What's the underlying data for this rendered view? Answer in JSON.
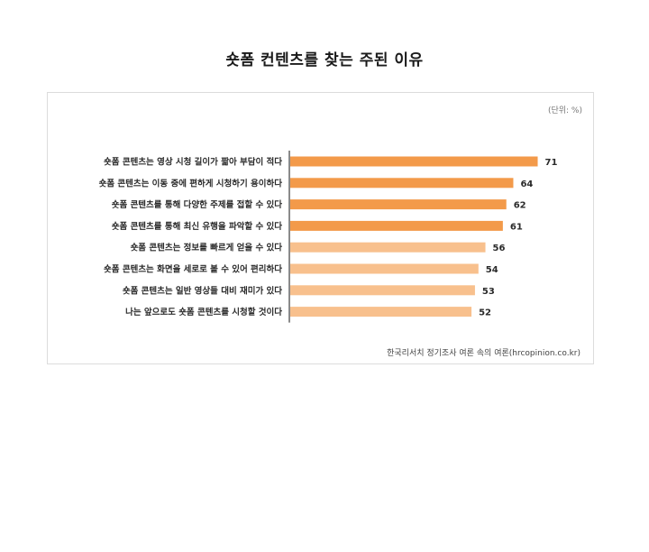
{
  "chart_data": {
    "type": "bar",
    "orientation": "horizontal",
    "title": "숏폼 컨텐츠를 찾는 주된 이유",
    "unit": "(단위: %)",
    "source": "한국리서치 정기조사 여론 속의 여론(hrcopinion.co.kr)",
    "categories": [
      "숏폼 콘텐츠는 영상 시청 길이가 짧아 부담이 적다",
      "숏폼 콘텐츠는 이동 중에 편하게 시청하기 용이하다",
      "숏폼 콘텐츠를 통해 다양한 주제를 접할 수 있다",
      "숏폼 콘텐츠를 통해 최신 유행을 파악할 수 있다",
      "숏폼 콘텐츠는 정보를 빠르게 얻을 수 있다",
      "숏폼 콘텐츠는 화면을 세로로 볼 수 있어 편리하다",
      "숏폼 콘텐츠는 일반 영상들 대비 재미가 있다",
      "나는 앞으로도 숏폼 콘텐츠를 시청할 것이다"
    ],
    "values": [
      71,
      64,
      62,
      61,
      56,
      54,
      53,
      52
    ],
    "xlim": [
      0,
      75
    ],
    "grid": false,
    "colors": {
      "primary": "#f39a4a",
      "secondary": "#f8c08d",
      "axis": "#8a8a8a"
    },
    "highlight_count": 4
  }
}
